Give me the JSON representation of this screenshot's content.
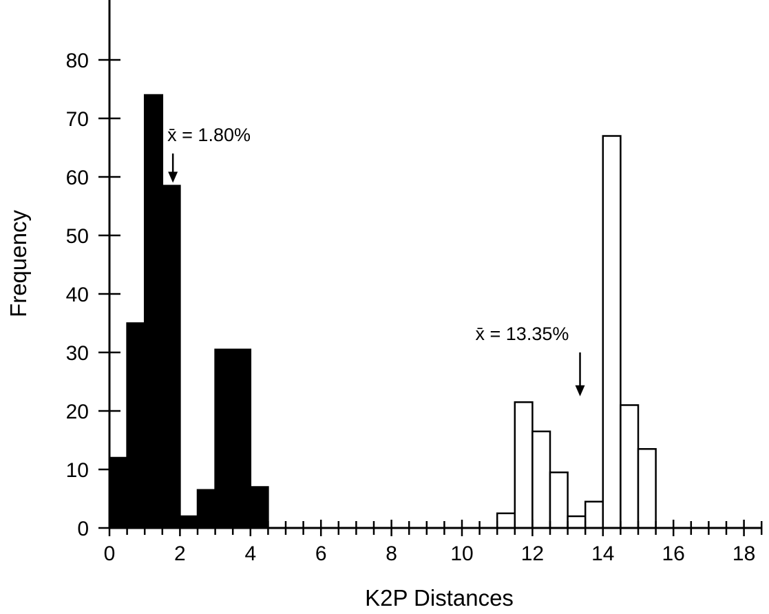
{
  "chart_data": {
    "type": "bar",
    "xlabel": "K2P Distances",
    "ylabel": "Frequency",
    "xlim": [
      0,
      18.5
    ],
    "ylim": [
      0,
      90
    ],
    "bin_width": 0.5,
    "xticks": [
      0,
      2,
      4,
      6,
      8,
      10,
      12,
      14,
      16,
      18
    ],
    "yticks": [
      0,
      10,
      20,
      30,
      40,
      50,
      60,
      70,
      80
    ],
    "grid": false,
    "legend": "none",
    "series": [
      {
        "fill": "#000000",
        "x": [
          0,
          0.5,
          1.0,
          1.5,
          2.0,
          2.5,
          3.0,
          3.5,
          4.0
        ],
        "values": [
          12,
          35,
          74,
          58.5,
          2,
          6.5,
          30.5,
          30.5,
          7
        ]
      },
      {
        "fill": "#ffffff",
        "x": [
          11.0,
          11.5,
          12.0,
          12.5,
          13.0,
          13.5,
          14.0,
          14.5,
          15.0
        ],
        "values": [
          2.5,
          21.5,
          16.5,
          9.5,
          2,
          4.5,
          67,
          21,
          13.5
        ]
      }
    ],
    "annotations": [
      {
        "text": "x̄ = 1.80%",
        "x": 1.8,
        "arrow_top": 64,
        "arrow_bottom": 59
      },
      {
        "text": "x̄ = 13.35%",
        "x": 13.35,
        "arrow_top": 30,
        "arrow_bottom": 22.5
      }
    ]
  }
}
